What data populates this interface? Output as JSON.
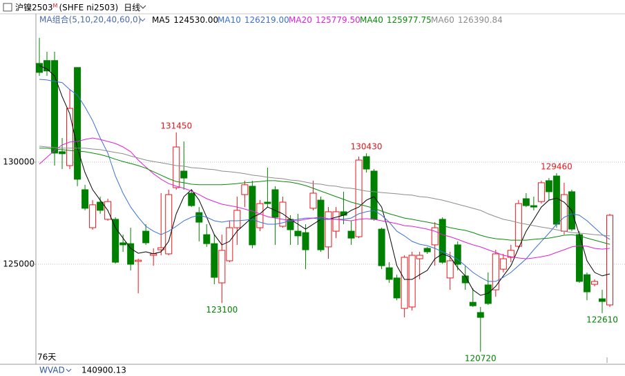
{
  "chart_data": {
    "type": "candlestick",
    "symbol": "沪镍2503",
    "symbol_flag": "M",
    "code": "(SHFE ni2503)",
    "period": "日线",
    "ma_group": "MA组合(5,10,20,40,60,0)",
    "up_color": "#e8151b",
    "down_color": "#008000",
    "categories": [
      null,
      null,
      null,
      null,
      null,
      null,
      null,
      null,
      null,
      null,
      null,
      null,
      null,
      null,
      null,
      null,
      null,
      null,
      null,
      null,
      null,
      null,
      null,
      null,
      null,
      null,
      null,
      null,
      null,
      null,
      null,
      null,
      null,
      null,
      null,
      null,
      null,
      null,
      null,
      null,
      null,
      null,
      null,
      null,
      null,
      null,
      null,
      null,
      null,
      null,
      null,
      null,
      null,
      null,
      null,
      null,
      null,
      null,
      null,
      null,
      null,
      null,
      null,
      null,
      null,
      null,
      null,
      null,
      null,
      null,
      null,
      null,
      null,
      null,
      null,
      null
    ],
    "open": [
      134830,
      134970,
      134970,
      130510,
      129830,
      134630,
      128650,
      126790,
      128040,
      127200,
      127200,
      126050,
      126010,
      125140,
      126620,
      125440,
      125710,
      125510,
      128750,
      129560,
      128480,
      127530,
      126450,
      126010,
      124090,
      125170,
      126790,
      128410,
      128820,
      126790,
      128040,
      128650,
      126860,
      127200,
      126620,
      126550,
      127740,
      128140,
      125850,
      126620,
      127570,
      126620,
      126350,
      130270,
      129560,
      126720,
      124830,
      124330,
      122840,
      122910,
      125270,
      125780,
      125950,
      127200,
      124330,
      125950,
      124430,
      123140,
      122640,
      123990,
      123750,
      124760,
      125340,
      125880,
      128210,
      127870,
      128070,
      129090,
      129320,
      126620,
      128550,
      126450,
      124490,
      124020,
      123310,
      123010
    ],
    "high": [
      136080,
      135400,
      135400,
      131180,
      133550,
      134630,
      128890,
      128140,
      128310,
      128210,
      127300,
      126450,
      126790,
      125270,
      126960,
      125780,
      128480,
      128650,
      131450,
      131010,
      128650,
      127800,
      126960,
      126450,
      126450,
      127130,
      128310,
      129090,
      129090,
      128140,
      129730,
      128820,
      128310,
      127400,
      127470,
      126960,
      129090,
      128310,
      127800,
      127800,
      128550,
      127130,
      130270,
      130430,
      129660,
      126790,
      125100,
      124490,
      125440,
      125610,
      125610,
      125850,
      127060,
      127300,
      125610,
      126120,
      124930,
      123820,
      122910,
      124600,
      125710,
      125510,
      125950,
      128140,
      128480,
      128310,
      129090,
      129220,
      129460,
      128990,
      128650,
      126620,
      124600,
      124260,
      123750,
      127470
    ],
    "low": [
      134220,
      134220,
      129830,
      129660,
      129660,
      128820,
      127640,
      126690,
      127470,
      127130,
      125030,
      125610,
      124700,
      123580,
      125950,
      124930,
      125440,
      125440,
      128650,
      128650,
      127800,
      126120,
      125850,
      124020,
      123100,
      125100,
      125950,
      127800,
      125780,
      126620,
      127800,
      125950,
      126790,
      125950,
      125950,
      124760,
      127640,
      125610,
      125270,
      126280,
      126960,
      125950,
      126280,
      129490,
      127130,
      124760,
      124090,
      123240,
      122400,
      122740,
      124260,
      125510,
      124930,
      125030,
      123750,
      124700,
      123750,
      122910,
      120720,
      123010,
      123410,
      124600,
      125100,
      125780,
      127800,
      127640,
      127970,
      128140,
      126790,
      126450,
      126620,
      124090,
      123240,
      123920,
      122610,
      122910
    ],
    "close": [
      134390,
      134460,
      130440,
      130410,
      132630,
      129160,
      127740,
      127910,
      127640,
      128070,
      125100,
      125950,
      125000,
      125200,
      126050,
      125510,
      125810,
      128410,
      130740,
      129220,
      127870,
      127060,
      126010,
      124360,
      125680,
      126790,
      127640,
      128890,
      125950,
      127970,
      127970,
      127300,
      128040,
      126690,
      126390,
      125710,
      128480,
      125710,
      127570,
      127570,
      127400,
      126280,
      130100,
      129660,
      127200,
      124930,
      124260,
      123350,
      125340,
      125440,
      125440,
      125610,
      126790,
      125100,
      125170,
      125000,
      124090,
      122970,
      122400,
      123080,
      125510,
      125270,
      125680,
      127970,
      127870,
      127800,
      128990,
      128550,
      126960,
      128410,
      126720,
      124160,
      123650,
      124160,
      123180,
      127400
    ],
    "series": [
      {
        "name": "MA5",
        "color": "#000000",
        "legend_label": "124530.00",
        "values": [
          134730,
          134560,
          134220,
          133210,
          132360,
          130680,
          129490,
          128650,
          128140,
          127640,
          126790,
          126280,
          125780,
          125540,
          125610,
          125510,
          125610,
          126120,
          127470,
          128310,
          128650,
          128140,
          127300,
          126450,
          125950,
          126120,
          126620,
          126960,
          127300,
          127470,
          127800,
          127640,
          127470,
          127200,
          126960,
          126720,
          126960,
          127200,
          127200,
          127300,
          127400,
          127640,
          127800,
          128140,
          128310,
          127800,
          126450,
          124930,
          124260,
          124260,
          124490,
          124700,
          125270,
          125510,
          125370,
          124830,
          124430,
          123750,
          123480,
          123580,
          123920,
          124430,
          124930,
          125780,
          126620,
          127200,
          127800,
          128140,
          128240,
          128040,
          127640,
          126450,
          125170,
          124600,
          124430,
          124530
        ]
      },
      {
        "name": "MA10",
        "color": "#3b6fd4",
        "legend_label": "126219.00",
        "values": [
          134050,
          134020,
          133950,
          133890,
          133550,
          133280,
          132700,
          132030,
          131180,
          130440,
          129320,
          128480,
          127800,
          127300,
          126860,
          126620,
          126450,
          126620,
          126860,
          127130,
          127300,
          127400,
          127300,
          127130,
          127060,
          127130,
          127130,
          127160,
          127200,
          127060,
          126960,
          126960,
          127030,
          127130,
          127200,
          127260,
          127260,
          127200,
          127200,
          127200,
          127200,
          127260,
          127470,
          127570,
          127640,
          127400,
          127060,
          126620,
          126390,
          126120,
          125980,
          125910,
          125780,
          125610,
          125440,
          125240,
          124930,
          124600,
          124360,
          124160,
          124160,
          124360,
          124600,
          124930,
          125270,
          125710,
          126120,
          126520,
          126960,
          127300,
          127470,
          127400,
          127130,
          126790,
          126450,
          126219
        ]
      },
      {
        "name": "MA20",
        "color": "#e020d8",
        "legend_label": "125779.50",
        "values": [
          129900,
          130240,
          130570,
          130840,
          130980,
          131010,
          131110,
          131180,
          131110,
          131010,
          130910,
          130740,
          130510,
          130100,
          129760,
          129430,
          129160,
          128950,
          128820,
          128720,
          128580,
          128410,
          128210,
          128070,
          127940,
          127870,
          127800,
          127700,
          127600,
          127470,
          127330,
          127260,
          127200,
          127130,
          127130,
          127200,
          127260,
          127300,
          127230,
          127200,
          127160,
          127130,
          127200,
          127230,
          127200,
          127130,
          127060,
          126990,
          126890,
          126860,
          126790,
          126720,
          126620,
          126450,
          126350,
          126220,
          126080,
          125950,
          125850,
          125710,
          125580,
          125440,
          125370,
          125310,
          125270,
          125310,
          125370,
          125440,
          125580,
          125710,
          125850,
          125910,
          125880,
          125780,
          125740,
          125779.5
        ]
      },
      {
        "name": "MA40",
        "color": "#0a8a0a",
        "legend_label": "125977.75",
        "values": [
          130680,
          130680,
          130640,
          130610,
          130570,
          130540,
          130510,
          130440,
          130370,
          130270,
          130140,
          130030,
          129930,
          129830,
          129700,
          129530,
          129360,
          129190,
          129050,
          128990,
          128920,
          128890,
          128890,
          128890,
          128890,
          128920,
          128950,
          128990,
          129020,
          129050,
          129090,
          129090,
          129050,
          129020,
          128950,
          128850,
          128720,
          128580,
          128450,
          128310,
          128180,
          128040,
          127940,
          127840,
          127740,
          127600,
          127470,
          127370,
          127260,
          127200,
          127130,
          127060,
          126990,
          126890,
          126790,
          126720,
          126660,
          126550,
          126420,
          126320,
          126250,
          126220,
          126180,
          126180,
          126180,
          126220,
          126250,
          126280,
          126350,
          126420,
          126450,
          126390,
          126280,
          126180,
          126080,
          125977.75
        ]
      },
      {
        "name": "MA60",
        "color": "#8c8c8c",
        "legend_label": "126390.84",
        "values": [
          130780,
          130740,
          130710,
          130680,
          130680,
          130680,
          130680,
          130640,
          130610,
          130540,
          130470,
          130410,
          130300,
          130200,
          130100,
          130030,
          129970,
          129900,
          129830,
          129800,
          129730,
          129700,
          129660,
          129630,
          129560,
          129530,
          129490,
          129430,
          129360,
          129320,
          129260,
          129220,
          129190,
          129120,
          129090,
          129020,
          128950,
          128920,
          128850,
          128820,
          128750,
          128720,
          128650,
          128580,
          128550,
          128510,
          128480,
          128450,
          128410,
          128380,
          128310,
          128280,
          128210,
          128140,
          128040,
          127940,
          127840,
          127740,
          127640,
          127470,
          127330,
          127200,
          127130,
          127030,
          126960,
          126890,
          126820,
          126760,
          126690,
          126620,
          126550,
          126520,
          126490,
          126450,
          126420,
          126390.84
        ]
      }
    ],
    "ylim": [
      120140,
      136650
    ],
    "yticks": [
      125000,
      130000
    ],
    "grid": true,
    "days_label": "76天",
    "indicator": {
      "name": "WVAD",
      "value": 140900.13
    }
  }
}
